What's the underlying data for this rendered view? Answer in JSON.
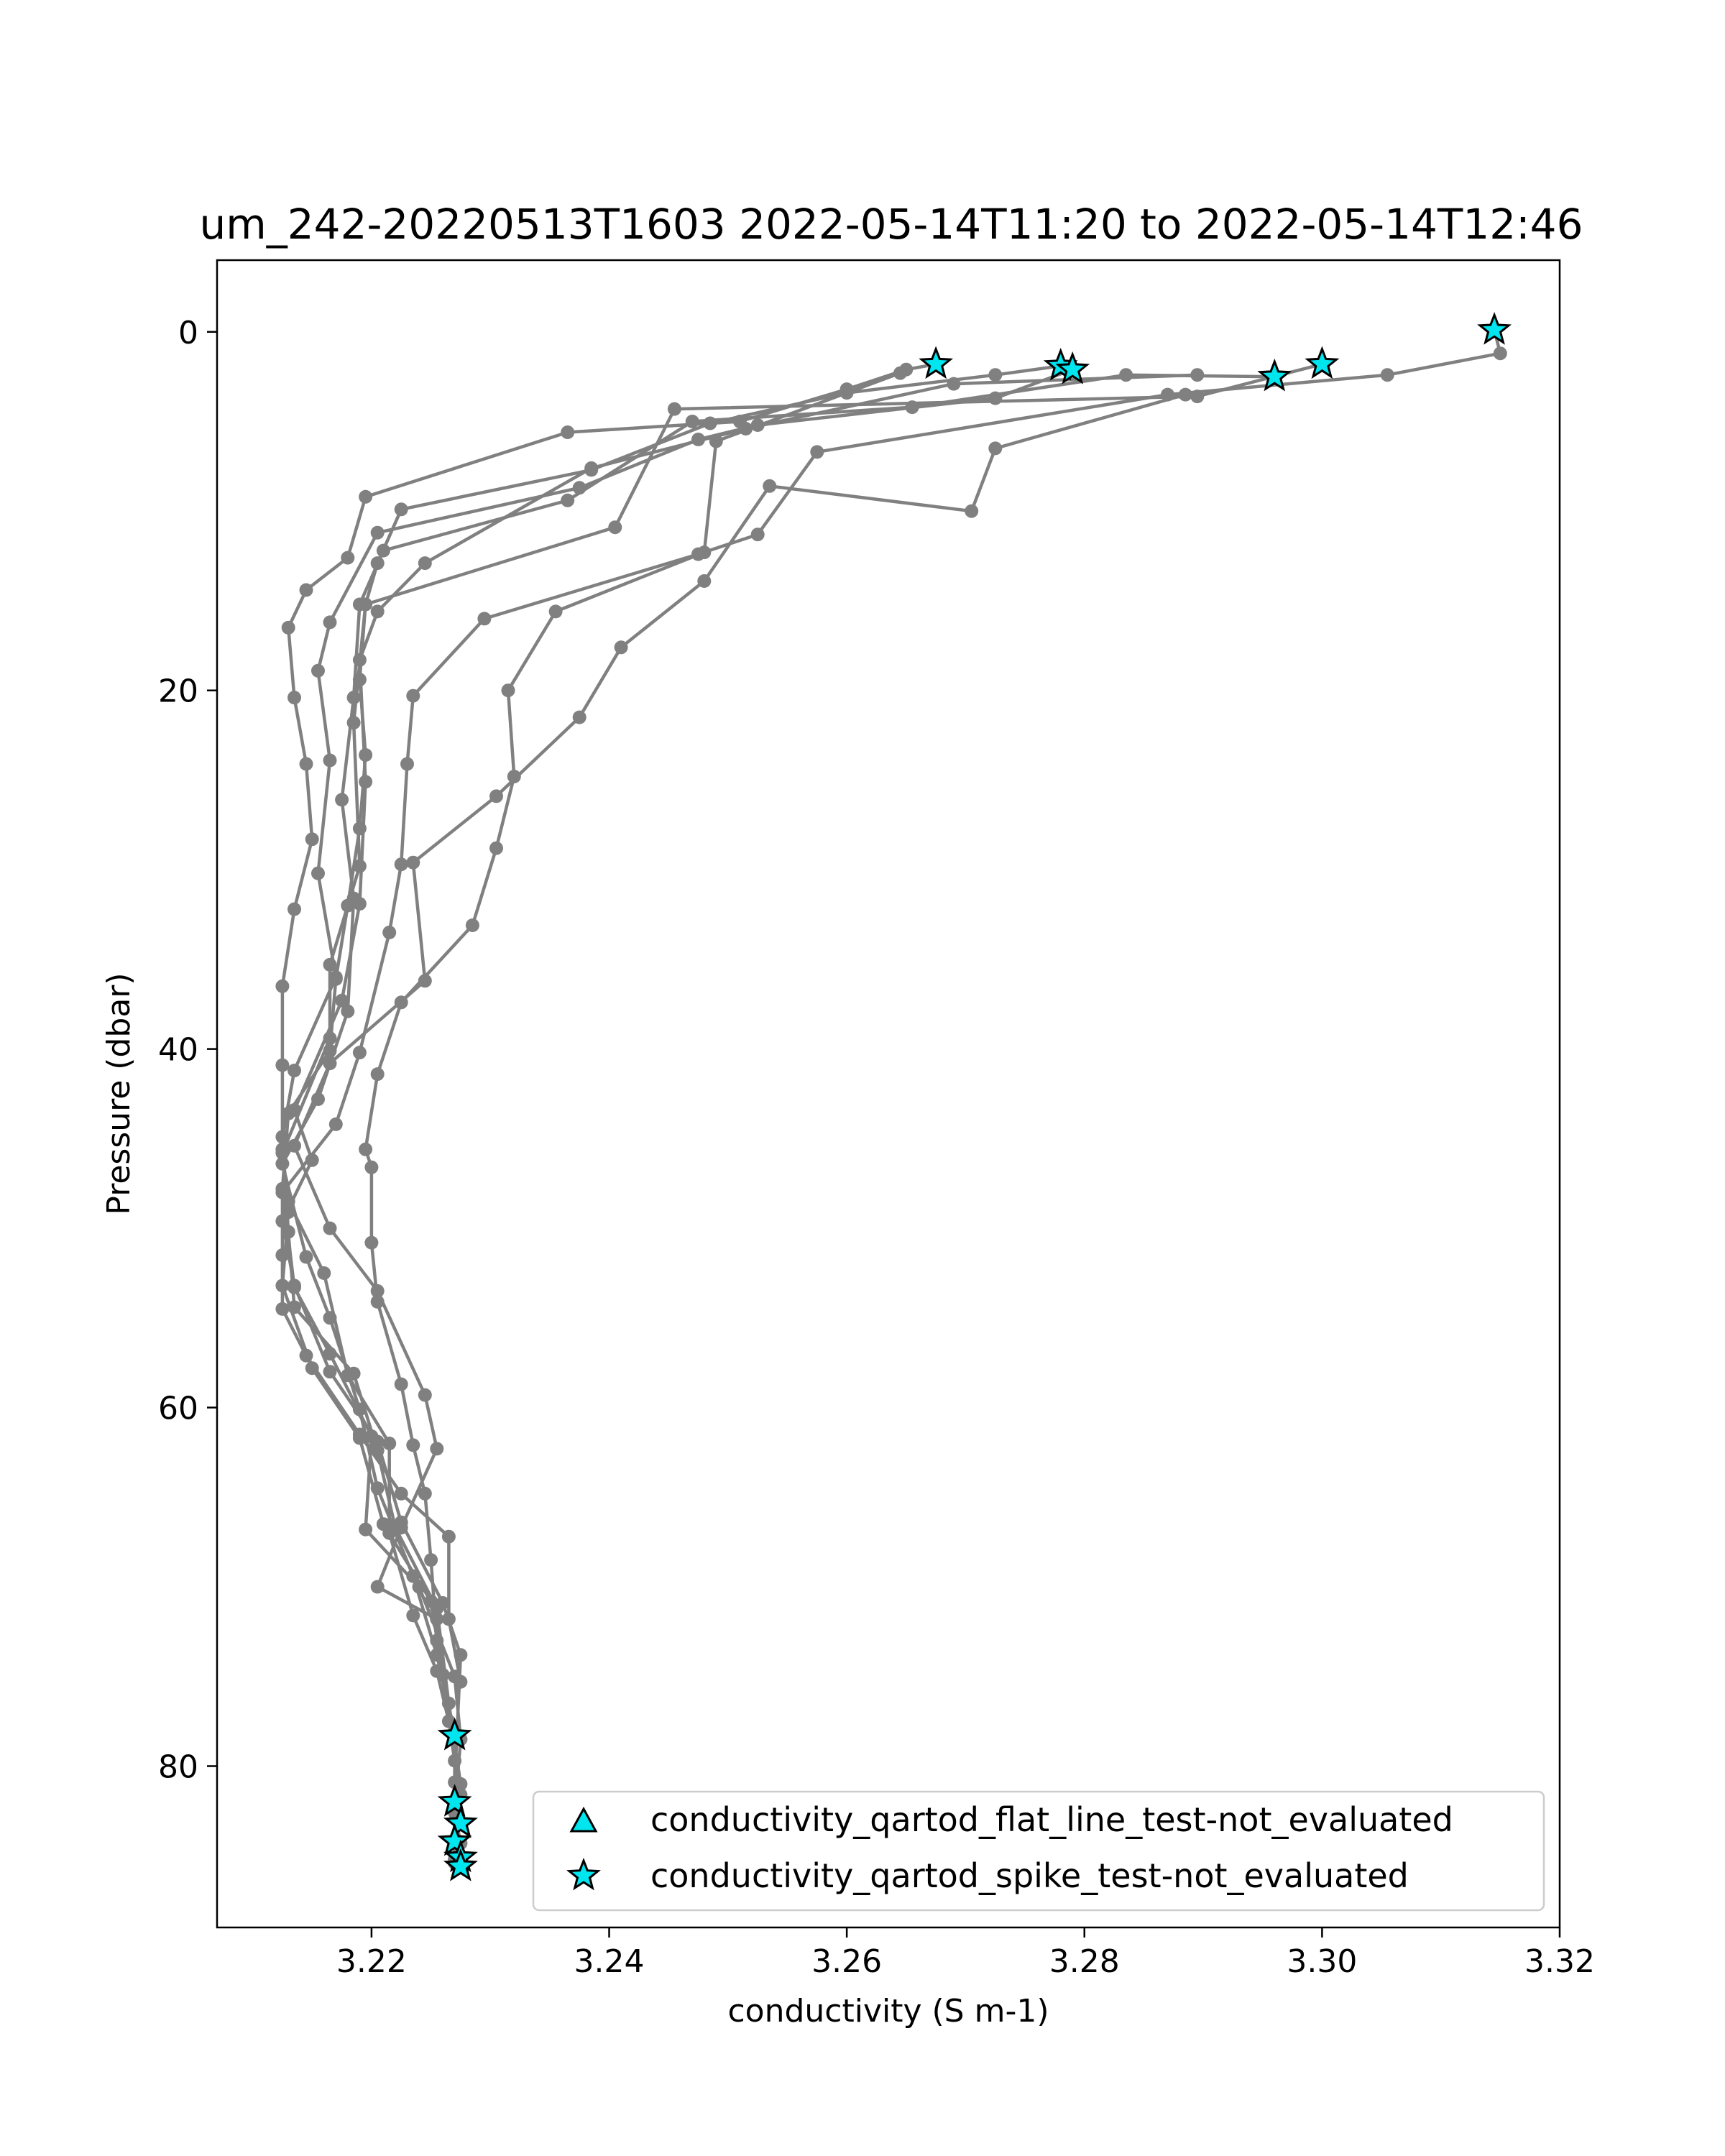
{
  "chart_data": {
    "type": "line",
    "title": "um_242-20220513T1603 2022-05-14T11:20 to 2022-05-14T12:46",
    "xlabel": "conductivity (S m-1)",
    "ylabel": "Pressure (dbar)",
    "xlim": [
      3.207,
      3.32
    ],
    "ylim": [
      89,
      -4
    ],
    "y_inverted": true,
    "xticks": [
      3.22,
      3.24,
      3.26,
      3.28,
      3.3,
      3.32
    ],
    "yticks": [
      0,
      20,
      40,
      60,
      80
    ],
    "grid": false,
    "legend_position": "lower-right",
    "series_color": "#808080",
    "marker_color": "#00e5ee",
    "profiles": [
      [
        [
          3.2675,
          1.8
        ],
        [
          3.265,
          2.1
        ],
        [
          3.26,
          3.2
        ],
        [
          3.251,
          5.0
        ],
        [
          3.2365,
          5.6
        ],
        [
          3.2195,
          9.2
        ],
        [
          3.218,
          12.6
        ],
        [
          3.2145,
          14.4
        ],
        [
          3.213,
          16.5
        ],
        [
          3.2135,
          20.4
        ],
        [
          3.2145,
          24.1
        ],
        [
          3.215,
          28.3
        ],
        [
          3.2135,
          32.2
        ],
        [
          3.2125,
          36.5
        ],
        [
          3.2125,
          40.9
        ],
        [
          3.2125,
          45.6
        ],
        [
          3.213,
          49.1
        ],
        [
          3.2125,
          53.2
        ],
        [
          3.215,
          57.8
        ],
        [
          3.219,
          61.7
        ],
        [
          3.221,
          66.5
        ],
        [
          3.225,
          70.8
        ],
        [
          3.226,
          74.9
        ],
        [
          3.227,
          78.3
        ],
        [
          3.227,
          82.0
        ],
        [
          3.227,
          85.2
        ]
      ],
      [
        [
          3.278,
          1.9
        ],
        [
          3.2725,
          2.4
        ],
        [
          3.26,
          3.4
        ],
        [
          3.2485,
          5.1
        ],
        [
          3.2385,
          7.7
        ],
        [
          3.2225,
          9.9
        ],
        [
          3.2205,
          12.9
        ],
        [
          3.2195,
          15.2
        ],
        [
          3.219,
          19.4
        ],
        [
          3.2195,
          23.6
        ],
        [
          3.219,
          27.7
        ],
        [
          3.218,
          32.0
        ],
        [
          3.217,
          36.1
        ],
        [
          3.2165,
          40.1
        ],
        [
          3.213,
          43.6
        ],
        [
          3.2125,
          47.8
        ],
        [
          3.2135,
          53.3
        ],
        [
          3.2165,
          57.0
        ],
        [
          3.22,
          61.6
        ],
        [
          3.2195,
          66.8
        ],
        [
          3.224,
          70.0
        ],
        [
          3.227,
          75.0
        ],
        [
          3.2275,
          78.5
        ],
        [
          3.227,
          82.6
        ],
        [
          3.2275,
          84.3
        ]
      ],
      [
        [
          3.279,
          2.1
        ],
        [
          3.2725,
          3.7
        ],
        [
          3.2525,
          5.2
        ],
        [
          3.2475,
          6.0
        ],
        [
          3.2375,
          8.7
        ],
        [
          3.2205,
          11.2
        ],
        [
          3.2165,
          16.2
        ],
        [
          3.2155,
          18.9
        ],
        [
          3.2165,
          23.9
        ],
        [
          3.2155,
          30.2
        ],
        [
          3.217,
          36.0
        ],
        [
          3.2135,
          41.2
        ],
        [
          3.2125,
          44.9
        ],
        [
          3.213,
          50.2
        ],
        [
          3.2135,
          54.4
        ],
        [
          3.2185,
          58.1
        ],
        [
          3.2205,
          62.4
        ],
        [
          3.222,
          66.7
        ],
        [
          3.2255,
          71.2
        ],
        [
          3.2265,
          76.5
        ],
        [
          3.2275,
          81.0
        ],
        [
          3.227,
          85.4
        ]
      ],
      [
        [
          3.296,
          2.5
        ],
        [
          3.2835,
          2.4
        ],
        [
          3.2655,
          4.2
        ],
        [
          3.247,
          5.0
        ],
        [
          3.2365,
          9.4
        ],
        [
          3.221,
          12.2
        ],
        [
          3.219,
          15.2
        ],
        [
          3.2185,
          20.4
        ],
        [
          3.2175,
          26.1
        ],
        [
          3.2185,
          31.6
        ],
        [
          3.218,
          37.9
        ],
        [
          3.2155,
          42.8
        ],
        [
          3.2125,
          46.4
        ],
        [
          3.2145,
          51.6
        ],
        [
          3.2165,
          55.0
        ],
        [
          3.219,
          60.1
        ],
        [
          3.2205,
          64.5
        ],
        [
          3.2235,
          69.4
        ],
        [
          3.2255,
          73.8
        ],
        [
          3.227,
          78.2
        ]
      ],
      [
        [
          3.3,
          1.8
        ],
        [
          3.2895,
          3.6
        ],
        [
          3.2455,
          4.3
        ],
        [
          3.2405,
          10.9
        ],
        [
          3.2195,
          15.2
        ],
        [
          3.2185,
          21.8
        ],
        [
          3.219,
          29.8
        ],
        [
          3.2165,
          35.3
        ],
        [
          3.2165,
          39.4
        ],
        [
          3.2125,
          45.8
        ],
        [
          3.213,
          48.5
        ],
        [
          3.216,
          52.5
        ],
        [
          3.218,
          58.2
        ],
        [
          3.2215,
          62.0
        ],
        [
          3.2215,
          67.0
        ],
        [
          3.2235,
          71.6
        ],
        [
          3.2255,
          74.7
        ],
        [
          3.2265,
          77.5
        ]
      ],
      [
        [
          3.3145,
          -0.1
        ],
        [
          3.315,
          1.2
        ],
        [
          3.3055,
          2.4
        ],
        [
          3.287,
          3.5
        ],
        [
          3.2575,
          6.7
        ],
        [
          3.2525,
          11.3
        ],
        [
          3.2475,
          12.4
        ],
        [
          3.2295,
          16.0
        ],
        [
          3.2235,
          20.3
        ],
        [
          3.223,
          24.1
        ],
        [
          3.2225,
          29.7
        ],
        [
          3.2215,
          33.5
        ],
        [
          3.219,
          40.2
        ],
        [
          3.217,
          44.2
        ],
        [
          3.2125,
          48.0
        ],
        [
          3.2125,
          51.5
        ],
        [
          3.2125,
          54.5
        ],
        [
          3.2145,
          57.1
        ],
        [
          3.219,
          61.5
        ],
        [
          3.2225,
          64.8
        ],
        [
          3.2265,
          67.2
        ],
        [
          3.2265,
          71.8
        ],
        [
          3.2275,
          75.3
        ]
      ],
      [
        [
          3.2895,
          2.4
        ],
        [
          3.269,
          2.9
        ],
        [
          3.2515,
          5.4
        ],
        [
          3.2385,
          7.6
        ],
        [
          3.2245,
          12.9
        ],
        [
          3.2205,
          15.6
        ],
        [
          3.219,
          18.3
        ],
        [
          3.2195,
          25.1
        ],
        [
          3.219,
          31.9
        ],
        [
          3.2175,
          37.3
        ],
        [
          3.2135,
          43.4
        ],
        [
          3.215,
          46.2
        ],
        [
          3.2125,
          49.6
        ],
        [
          3.2135,
          53.2
        ],
        [
          3.2165,
          58.0
        ],
        [
          3.2205,
          61.9
        ],
        [
          3.2225,
          66.4
        ],
        [
          3.226,
          70.9
        ],
        [
          3.2275,
          73.8
        ],
        [
          3.227,
          80.9
        ]
      ],
      [
        [
          3.2645,
          2.3
        ],
        [
          3.249,
          6.1
        ],
        [
          3.248,
          12.3
        ],
        [
          3.2355,
          15.6
        ],
        [
          3.2315,
          20.0
        ],
        [
          3.232,
          24.8
        ],
        [
          3.2305,
          28.8
        ],
        [
          3.2285,
          33.1
        ],
        [
          3.2225,
          37.4
        ],
        [
          3.2205,
          41.4
        ],
        [
          3.2195,
          45.6
        ],
        [
          3.22,
          46.6
        ],
        [
          3.22,
          50.8
        ],
        [
          3.2205,
          54.1
        ],
        [
          3.2225,
          58.7
        ],
        [
          3.2235,
          62.1
        ],
        [
          3.2245,
          64.8
        ],
        [
          3.225,
          68.5
        ],
        [
          3.2255,
          73.0
        ],
        [
          3.227,
          79.7
        ]
      ],
      [
        [
          3.2885,
          3.5
        ],
        [
          3.2725,
          6.5
        ],
        [
          3.2705,
          10.0
        ],
        [
          3.2535,
          8.6
        ],
        [
          3.248,
          13.9
        ],
        [
          3.241,
          17.6
        ],
        [
          3.2375,
          21.5
        ],
        [
          3.2305,
          25.9
        ],
        [
          3.2235,
          29.6
        ],
        [
          3.2245,
          36.2
        ],
        [
          3.2165,
          40.8
        ],
        [
          3.2135,
          45.4
        ],
        [
          3.2165,
          50.0
        ],
        [
          3.2205,
          53.5
        ],
        [
          3.2245,
          59.3
        ],
        [
          3.2255,
          62.3
        ],
        [
          3.2225,
          66.7
        ],
        [
          3.2205,
          70.0
        ],
        [
          3.2255,
          71.8
        ],
        [
          3.2275,
          81.6
        ]
      ]
    ],
    "flagged_points": [
      [
        3.2675,
        1.8
      ],
      [
        3.278,
        1.9
      ],
      [
        3.279,
        2.1
      ],
      [
        3.296,
        2.5
      ],
      [
        3.3,
        1.8
      ],
      [
        3.3145,
        -0.1
      ],
      [
        3.227,
        78.3
      ],
      [
        3.227,
        82.0
      ],
      [
        3.2275,
        83.2
      ],
      [
        3.227,
        84.2
      ],
      [
        3.2275,
        85.1
      ],
      [
        3.2275,
        85.6
      ]
    ],
    "legend": [
      {
        "label": "conductivity_qartod_flat_line_test-not_evaluated",
        "marker": "triangle"
      },
      {
        "label": "conductivity_qartod_spike_test-not_evaluated",
        "marker": "star"
      }
    ]
  }
}
